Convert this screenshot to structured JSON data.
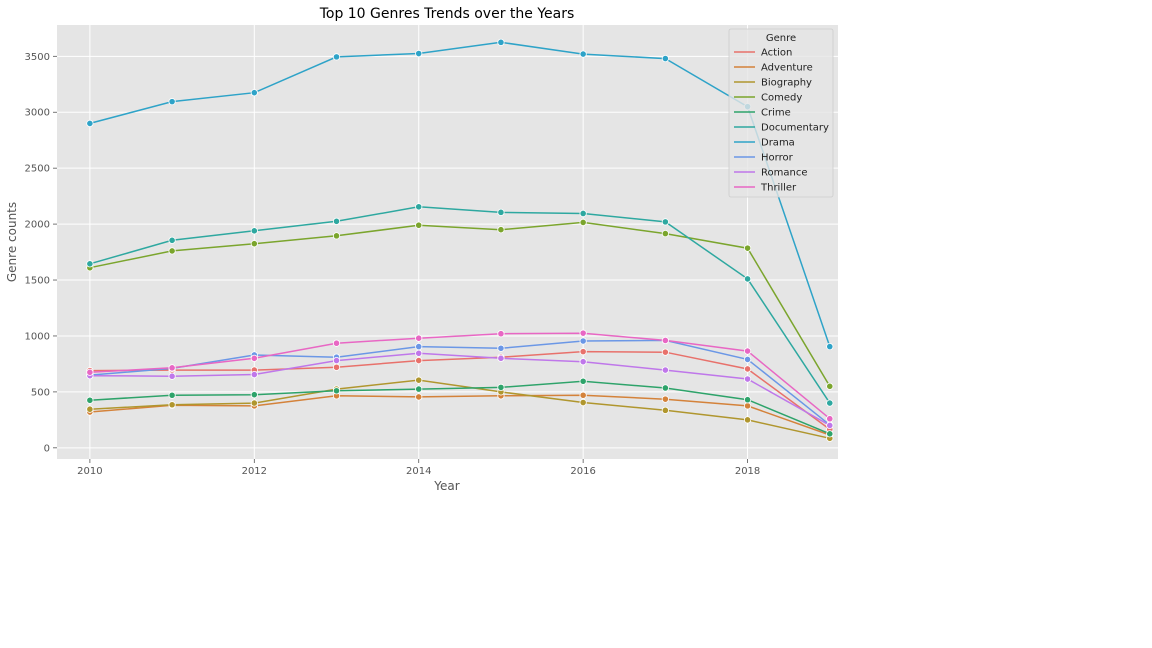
{
  "chart_data": {
    "type": "line",
    "title": "Top 10  Genres Trends over the Years",
    "xlabel": "Year",
    "ylabel": "Genre counts",
    "xlim": [
      2009.6,
      2019.1
    ],
    "ylim": [
      -100,
      3780
    ],
    "xticks": [
      2010,
      2012,
      2014,
      2016,
      2018
    ],
    "yticks": [
      0,
      500,
      1000,
      1500,
      2000,
      2500,
      3000,
      3500
    ],
    "grid": true,
    "legend": {
      "title": "Genre",
      "position": "top-right"
    },
    "x": [
      2010,
      2011,
      2012,
      2013,
      2014,
      2015,
      2016,
      2017,
      2018,
      2019
    ],
    "series": [
      {
        "name": "Action",
        "color": "#e8716b",
        "values": [
          690,
          695,
          695,
          720,
          780,
          810,
          860,
          855,
          705,
          165
        ]
      },
      {
        "name": "Adventure",
        "color": "#d4823a",
        "values": [
          320,
          380,
          375,
          465,
          455,
          465,
          470,
          435,
          375,
          115
        ]
      },
      {
        "name": "Biography",
        "color": "#b0962e",
        "values": [
          345,
          385,
          400,
          525,
          605,
          500,
          405,
          335,
          250,
          85
        ]
      },
      {
        "name": "Comedy",
        "color": "#7ba52d",
        "values": [
          1610,
          1760,
          1825,
          1895,
          1990,
          1950,
          2015,
          1915,
          1785,
          550
        ]
      },
      {
        "name": "Crime",
        "color": "#2ea36a",
        "values": [
          425,
          470,
          475,
          510,
          525,
          540,
          595,
          535,
          430,
          125
        ]
      },
      {
        "name": "Documentary",
        "color": "#2ea8a0",
        "values": [
          1645,
          1855,
          1940,
          2025,
          2155,
          2105,
          2095,
          2020,
          1510,
          400
        ]
      },
      {
        "name": "Drama",
        "color": "#2ea3c8",
        "values": [
          2900,
          3095,
          3175,
          3495,
          3525,
          3625,
          3520,
          3480,
          3050,
          905
        ]
      },
      {
        "name": "Horror",
        "color": "#6b97e6",
        "values": [
          650,
          710,
          830,
          810,
          905,
          890,
          955,
          960,
          790,
          205
        ]
      },
      {
        "name": "Romance",
        "color": "#bf77ea",
        "values": [
          645,
          640,
          655,
          780,
          845,
          800,
          770,
          695,
          615,
          200
        ]
      },
      {
        "name": "Thriller",
        "color": "#e867c4",
        "values": [
          675,
          715,
          800,
          935,
          980,
          1020,
          1025,
          960,
          865,
          260
        ]
      }
    ]
  }
}
